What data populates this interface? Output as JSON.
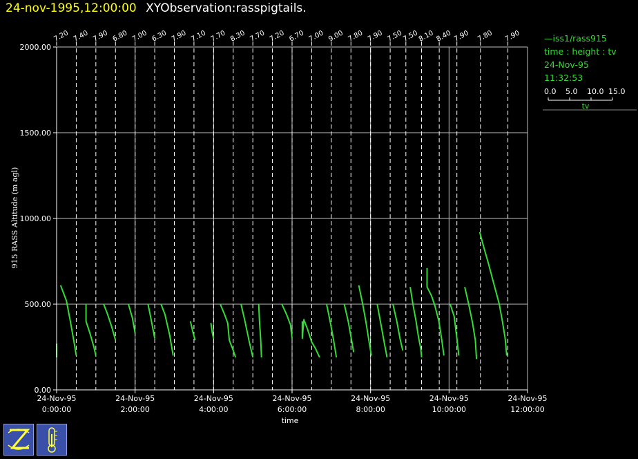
{
  "header": {
    "timestamp": "24-nov-1995,12:00:00",
    "observation": "XYObservation:rasspigtails."
  },
  "legend": {
    "series_line": "—iss1/rass915",
    "mapping": "time : height : tv",
    "date": "24-Nov-95",
    "time": "11:32:53",
    "scale": {
      "ticks": [
        "0.0",
        "5.0",
        "10.0",
        "15.0"
      ],
      "label": "tv"
    }
  },
  "colors": {
    "background": "#000000",
    "trace": "#33dd33",
    "header_timestamp": "#ffff00",
    "axes": "#ffffff"
  },
  "toolbar": {
    "icons": [
      "zebra-logo-icon",
      "thermometer-icon"
    ]
  },
  "chart_data": {
    "type": "line",
    "xlabel": "time",
    "ylabel": "915 RASS Altitude (m agl)",
    "xlim_hours": [
      0,
      12
    ],
    "ylim": [
      0,
      2000
    ],
    "grid": true,
    "y_ticks": [
      "0.00",
      "500.00",
      "1000.00",
      "1500.00",
      "2000.00"
    ],
    "x_ticks": [
      {
        "hour": 0,
        "date": "24-Nov-95",
        "time": "0:00:00"
      },
      {
        "hour": 2,
        "date": "24-Nov-95",
        "time": "2:00:00"
      },
      {
        "hour": 4,
        "date": "24-Nov-95",
        "time": "4:00:00"
      },
      {
        "hour": 6,
        "date": "24-Nov-95",
        "time": "6:00:00"
      },
      {
        "hour": 8,
        "date": "24-Nov-95",
        "time": "8:00:00"
      },
      {
        "hour": 10,
        "date": "24-Nov-95",
        "time": "10:00:00"
      },
      {
        "hour": 12,
        "date": "24-Nov-95",
        "time": "12:00:00"
      }
    ],
    "profiles": [
      {
        "hour": 0.0,
        "label": "7.20",
        "points": [
          [
            0.0,
            190
          ],
          [
            0.0,
            270
          ]
        ]
      },
      {
        "hour": 0.5,
        "label": "7.40",
        "points": [
          [
            0.1,
            610
          ],
          [
            0.25,
            520
          ],
          [
            0.35,
            400
          ],
          [
            0.45,
            270
          ],
          [
            0.5,
            200
          ]
        ]
      },
      {
        "hour": 1.0,
        "label": "7.90",
        "points": [
          [
            0.75,
            500
          ],
          [
            0.75,
            400
          ],
          [
            0.85,
            330
          ],
          [
            0.95,
            250
          ],
          [
            1.0,
            200
          ]
        ]
      },
      {
        "hour": 1.5,
        "label": "6.80",
        "points": [
          [
            1.2,
            500
          ],
          [
            1.3,
            440
          ],
          [
            1.4,
            370
          ],
          [
            1.5,
            290
          ]
        ]
      },
      {
        "hour": 2.0,
        "label": "7.00",
        "points": [
          [
            1.83,
            500
          ],
          [
            1.93,
            420
          ],
          [
            2.0,
            330
          ]
        ]
      },
      {
        "hour": 2.5,
        "label": "6.30",
        "points": [
          [
            2.33,
            500
          ],
          [
            2.4,
            420
          ],
          [
            2.5,
            300
          ]
        ]
      },
      {
        "hour": 3.0,
        "label": "7.90",
        "points": [
          [
            2.66,
            500
          ],
          [
            2.76,
            440
          ],
          [
            2.88,
            320
          ],
          [
            2.97,
            200
          ]
        ]
      },
      {
        "hour": 3.5,
        "label": "7.10",
        "points": [
          [
            3.41,
            400
          ],
          [
            3.48,
            330
          ],
          [
            3.53,
            290
          ]
        ]
      },
      {
        "hour": 4.0,
        "label": "7.70",
        "points": [
          [
            3.93,
            390
          ],
          [
            3.97,
            330
          ],
          [
            4.0,
            300
          ]
        ]
      },
      {
        "hour": 4.5,
        "label": "8.30",
        "points": [
          [
            4.17,
            500
          ],
          [
            4.28,
            440
          ],
          [
            4.36,
            390
          ],
          [
            4.4,
            290
          ],
          [
            4.5,
            230
          ],
          [
            4.56,
            190
          ]
        ]
      },
      {
        "hour": 5.0,
        "label": "7.70",
        "points": [
          [
            4.7,
            500
          ],
          [
            4.8,
            400
          ],
          [
            4.9,
            290
          ],
          [
            5.0,
            190
          ]
        ]
      },
      {
        "hour": 5.5,
        "label": "7.20",
        "points": [
          [
            5.15,
            500
          ],
          [
            5.17,
            400
          ],
          [
            5.2,
            300
          ],
          [
            5.22,
            190
          ]
        ]
      },
      {
        "hour": 6.0,
        "label": "6.70",
        "points": [
          [
            5.74,
            500
          ],
          [
            5.86,
            440
          ],
          [
            5.96,
            380
          ],
          [
            6.0,
            300
          ]
        ]
      },
      {
        "hour": 6.5,
        "label": "7.00",
        "points": [
          [
            6.26,
            400
          ],
          [
            6.26,
            300
          ],
          [
            6.3,
            410
          ],
          [
            6.4,
            350
          ],
          [
            6.5,
            280
          ],
          [
            6.6,
            240
          ],
          [
            6.7,
            190
          ]
        ]
      },
      {
        "hour": 7.0,
        "label": "9.00",
        "points": [
          [
            6.88,
            500
          ],
          [
            6.97,
            400
          ],
          [
            7.05,
            300
          ],
          [
            7.13,
            190
          ]
        ]
      },
      {
        "hour": 7.5,
        "label": "7.80",
        "points": [
          [
            7.33,
            500
          ],
          [
            7.43,
            400
          ],
          [
            7.5,
            310
          ],
          [
            7.57,
            220
          ]
        ]
      },
      {
        "hour": 8.0,
        "label": "7.90",
        "points": [
          [
            7.7,
            610
          ],
          [
            7.8,
            500
          ],
          [
            7.88,
            400
          ],
          [
            7.95,
            300
          ],
          [
            8.02,
            200
          ]
        ]
      },
      {
        "hour": 8.5,
        "label": "7.50",
        "points": [
          [
            8.17,
            500
          ],
          [
            8.25,
            400
          ],
          [
            8.33,
            300
          ],
          [
            8.42,
            190
          ]
        ]
      },
      {
        "hour": 8.9,
        "label": "7.50",
        "points": [
          [
            8.57,
            500
          ],
          [
            8.67,
            400
          ],
          [
            8.75,
            300
          ],
          [
            8.82,
            230
          ]
        ]
      },
      {
        "hour": 9.3,
        "label": "8.10",
        "points": [
          [
            9.01,
            600
          ],
          [
            9.08,
            500
          ],
          [
            9.16,
            400
          ],
          [
            9.22,
            310
          ],
          [
            9.28,
            240
          ],
          [
            9.3,
            190
          ]
        ]
      },
      {
        "hour": 9.75,
        "label": "8.40",
        "points": [
          [
            9.44,
            710
          ],
          [
            9.44,
            600
          ],
          [
            9.55,
            550
          ],
          [
            9.64,
            490
          ],
          [
            9.74,
            400
          ],
          [
            9.81,
            300
          ],
          [
            9.87,
            200
          ]
        ]
      },
      {
        "hour": 10.2,
        "label": "7.90",
        "points": [
          [
            10.03,
            500
          ],
          [
            10.13,
            430
          ],
          [
            10.2,
            300
          ],
          [
            10.25,
            200
          ]
        ]
      },
      {
        "hour": 10.8,
        "label": "7.80",
        "points": [
          [
            10.4,
            600
          ],
          [
            10.5,
            500
          ],
          [
            10.6,
            390
          ],
          [
            10.67,
            290
          ],
          [
            10.7,
            180
          ]
        ]
      },
      {
        "hour": 11.5,
        "label": "7.90",
        "points": [
          [
            10.78,
            920
          ],
          [
            10.9,
            820
          ],
          [
            11.0,
            740
          ],
          [
            11.14,
            620
          ],
          [
            11.28,
            500
          ],
          [
            11.36,
            400
          ],
          [
            11.43,
            300
          ],
          [
            11.47,
            200
          ]
        ]
      }
    ]
  }
}
